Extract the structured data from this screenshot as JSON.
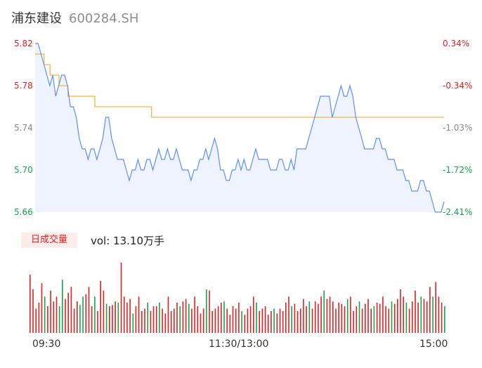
{
  "header": {
    "name": "浦东建设",
    "code": "600284.SH"
  },
  "volume": {
    "period_label": "日成交量",
    "label": "vol: 13.10万手"
  },
  "colors": {
    "price_line": "#5b8ff9",
    "avg_line": "#f5b342",
    "up": "#e02020",
    "down": "#11a84b",
    "area": "#eef3fe"
  },
  "chart_data": [
    {
      "type": "line",
      "x_tick_labels": [
        "09:30",
        "11:30/13:00",
        "15:00"
      ],
      "y_tick_labels_left": [
        "5.82",
        "5.78",
        "5.74",
        "5.70",
        "5.66"
      ],
      "y_tick_labels_right": [
        "0.34%",
        "-0.34%",
        "-1.03%",
        "-1.72%",
        "-2.41%"
      ],
      "ylim": [
        5.66,
        5.82
      ],
      "series": [
        {
          "values": [
            5.82,
            5.82,
            5.81,
            5.8,
            5.79,
            5.78,
            5.79,
            5.77,
            5.78,
            5.79,
            5.79,
            5.78,
            5.76,
            5.76,
            5.75,
            5.73,
            5.72,
            5.72,
            5.71,
            5.72,
            5.72,
            5.71,
            5.72,
            5.73,
            5.75,
            5.75,
            5.73,
            5.72,
            5.71,
            5.71,
            5.71,
            5.7,
            5.69,
            5.7,
            5.7,
            5.71,
            5.7,
            5.7,
            5.71,
            5.71,
            5.7,
            5.71,
            5.72,
            5.71,
            5.71,
            5.72,
            5.71,
            5.71,
            5.72,
            5.71,
            5.7,
            5.7,
            5.7,
            5.69,
            5.7,
            5.7,
            5.71,
            5.71,
            5.72,
            5.71,
            5.72,
            5.73,
            5.72,
            5.7,
            5.7,
            5.69,
            5.69,
            5.7,
            5.7,
            5.71,
            5.7,
            5.71,
            5.7,
            5.7,
            5.71,
            5.72,
            5.71,
            5.71,
            5.71,
            5.71,
            5.7,
            5.7,
            5.7,
            5.71,
            5.71,
            5.7,
            5.7,
            5.71,
            5.7,
            5.72,
            5.72,
            5.72,
            5.72,
            5.73,
            5.74,
            5.75,
            5.76,
            5.77,
            5.77,
            5.77,
            5.77,
            5.75,
            5.76,
            5.77,
            5.78,
            5.77,
            5.77,
            5.78,
            5.77,
            5.75,
            5.74,
            5.73,
            5.72,
            5.72,
            5.72,
            5.72,
            5.73,
            5.73,
            5.72,
            5.72,
            5.71,
            5.71,
            5.71,
            5.7,
            5.7,
            5.7,
            5.69,
            5.69,
            5.68,
            5.68,
            5.68,
            5.69,
            5.69,
            5.68,
            5.68,
            5.67,
            5.66,
            5.66,
            5.66,
            5.67
          ]
        },
        {
          "values": [
            5.81,
            5.81,
            5.81,
            5.8,
            5.8,
            5.79,
            5.79,
            5.79,
            5.78,
            5.78,
            5.78,
            5.77,
            5.77,
            5.77,
            5.77,
            5.77,
            5.77,
            5.77,
            5.77,
            5.77,
            5.76,
            5.76,
            5.76,
            5.76,
            5.76,
            5.76,
            5.76,
            5.76,
            5.76,
            5.76,
            5.76,
            5.76,
            5.76,
            5.76,
            5.76,
            5.76,
            5.76,
            5.76,
            5.76,
            5.75,
            5.75,
            5.75,
            5.75,
            5.75,
            5.75,
            5.75,
            5.75,
            5.75,
            5.75,
            5.75,
            5.75,
            5.75,
            5.75,
            5.75,
            5.75,
            5.75,
            5.75,
            5.75,
            5.75,
            5.75,
            5.75,
            5.75,
            5.75,
            5.75,
            5.75,
            5.75,
            5.75,
            5.75,
            5.75,
            5.75,
            5.75,
            5.75,
            5.75,
            5.75,
            5.75,
            5.75,
            5.75,
            5.75,
            5.75,
            5.75,
            5.75,
            5.75,
            5.75,
            5.75,
            5.75,
            5.75,
            5.75,
            5.75,
            5.75,
            5.75,
            5.75,
            5.75,
            5.75,
            5.75,
            5.75,
            5.75,
            5.75,
            5.75,
            5.75,
            5.75,
            5.75,
            5.75,
            5.75,
            5.75,
            5.75,
            5.75,
            5.75,
            5.75,
            5.75,
            5.75,
            5.75,
            5.75,
            5.75,
            5.75,
            5.75,
            5.75,
            5.75,
            5.75,
            5.75,
            5.75,
            5.75,
            5.75,
            5.75,
            5.75,
            5.75,
            5.75,
            5.75,
            5.75,
            5.75,
            5.75,
            5.75,
            5.75,
            5.75,
            5.75,
            5.75,
            5.75,
            5.75,
            5.75
          ]
        }
      ]
    },
    {
      "type": "bar",
      "volumes": [
        48,
        36,
        20,
        25,
        41,
        30,
        22,
        35,
        26,
        30,
        22,
        44,
        28,
        33,
        38,
        20,
        26,
        23,
        30,
        32,
        38,
        22,
        30,
        18,
        43,
        35,
        24,
        22,
        23,
        26,
        25,
        58,
        30,
        25,
        28,
        16,
        22,
        30,
        18,
        20,
        25,
        18,
        22,
        22,
        25,
        20,
        16,
        30,
        18,
        20,
        25,
        22,
        26,
        28,
        24,
        20,
        30,
        22,
        16,
        20,
        36,
        35,
        18,
        20,
        22,
        25,
        26,
        20,
        15,
        22,
        20,
        25,
        18,
        15,
        20,
        22,
        30,
        25,
        18,
        20,
        22,
        15,
        18,
        20,
        16,
        20,
        18,
        25,
        30,
        22,
        24,
        18,
        20,
        28,
        22,
        26,
        20,
        26,
        24,
        30,
        35,
        28,
        30,
        26,
        20,
        25,
        24,
        22,
        28,
        30,
        18,
        22,
        26,
        20,
        24,
        28,
        20,
        22,
        25,
        24,
        30,
        22,
        20,
        26,
        24,
        28,
        36,
        30,
        25,
        20,
        26,
        35,
        25,
        30,
        28,
        26,
        38,
        30,
        42,
        30,
        25,
        22
      ],
      "down_index": [
        5,
        10,
        11,
        17,
        18,
        22,
        26,
        30,
        35,
        40,
        44,
        51,
        54,
        60,
        66,
        72,
        77,
        83,
        89,
        95,
        100,
        108,
        112,
        117,
        123,
        128,
        133,
        137,
        141
      ]
    }
  ]
}
